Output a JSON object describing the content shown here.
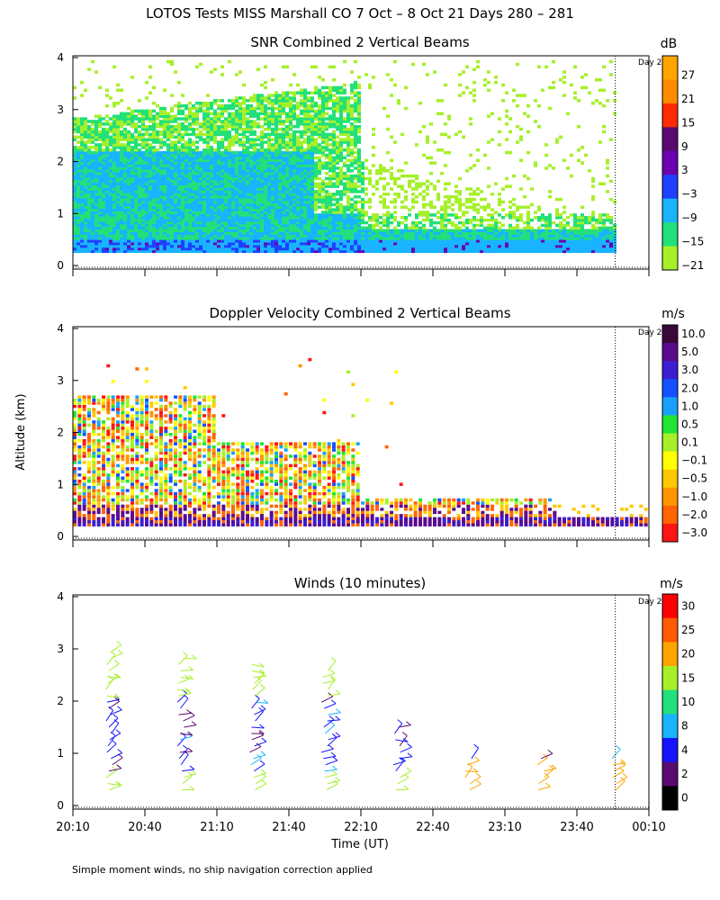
{
  "title": "LOTOS Tests MISS Marshall CO   7 Oct –  8 Oct 21 Days 280 – 281",
  "ylabel": "Altitude (km)",
  "xlabel": "Time (UT)",
  "footnote": "Simple moment winds, no ship navigation correction applied",
  "day_marker_label": "Day 2",
  "chart_data": [
    {
      "type": "heatmap",
      "title": "SNR Combined 2 Vertical Beams",
      "xlabel": "Time (UT)",
      "ylabel": "Altitude (km)",
      "ylim": [
        0,
        4
      ],
      "yticks": [
        "0",
        "1",
        "2",
        "3",
        "4"
      ],
      "colorbar_unit": "dB",
      "colorbar_labels": [
        "27",
        "21",
        "15",
        "9",
        "3",
        "−3",
        "−9",
        "−15",
        "−21"
      ],
      "colorbar_colors": [
        "#ffa500",
        "#ff8c00",
        "#ff2a00",
        "#5a0a6e",
        "#6a00b0",
        "#2040ff",
        "#19b4ff",
        "#22e07a",
        "#a6f02a"
      ],
      "day_boundary_min": 226
    },
    {
      "type": "heatmap",
      "title": "Doppler Velocity Combined 2 Vertical Beams",
      "xlabel": "Time (UT)",
      "ylabel": "Altitude (km)",
      "ylim": [
        0,
        4
      ],
      "yticks": [
        "0",
        "1",
        "2",
        "3",
        "4"
      ],
      "colorbar_unit": "m/s",
      "colorbar_labels": [
        "10.0",
        "5.0",
        "3.0",
        "2.0",
        "1.0",
        "0.5",
        "0.1",
        "−0.1",
        "−0.5",
        "−1.0",
        "−2.0",
        "−3.0"
      ],
      "colorbar_colors": [
        "#3a0838",
        "#5a0a8c",
        "#3c1ed2",
        "#1450ff",
        "#19a0ff",
        "#1ee632",
        "#a6f02a",
        "#ffff00",
        "#ffc800",
        "#ff9600",
        "#ff6400",
        "#ff1414"
      ],
      "day_boundary_min": 226
    },
    {
      "type": "scatter",
      "title": "Winds (10 minutes)",
      "xlabel": "Time (UT)",
      "ylabel": "Altitude (km)",
      "ylim": [
        0,
        4
      ],
      "yticks": [
        "0",
        "1",
        "2",
        "3",
        "4"
      ],
      "xticks": [
        "20:10",
        "20:40",
        "21:10",
        "21:40",
        "22:10",
        "22:40",
        "23:10",
        "23:40",
        "00:10"
      ],
      "colorbar_unit": "m/s",
      "colorbar_labels": [
        "30",
        "25",
        "20",
        "15",
        "10",
        "8",
        "4",
        "2",
        "0"
      ],
      "colorbar_colors": [
        "#ff0000",
        "#ff5a00",
        "#ffa500",
        "#a6f02a",
        "#22e07a",
        "#19b4ff",
        "#1414ff",
        "#5a0a6e",
        "#000000"
      ],
      "day_boundary_min": 226,
      "profile_times_min": [
        15,
        45,
        75,
        105,
        135,
        165,
        195,
        225
      ]
    }
  ]
}
